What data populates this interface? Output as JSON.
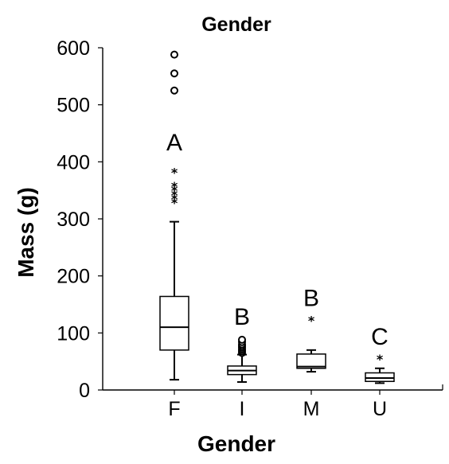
{
  "chart_data": {
    "type": "boxplot",
    "title": "Gender",
    "xlabel": "Gender",
    "ylabel": "Mass (g)",
    "ylim": [
      0,
      600
    ],
    "yticks": [
      0,
      100,
      200,
      300,
      400,
      500,
      600
    ],
    "categories": [
      "F",
      "I",
      "M",
      "U"
    ],
    "grid": false,
    "groups": [
      {
        "category": "F",
        "min": 18,
        "q1": 70,
        "median": 110,
        "q3": 164,
        "max": 295,
        "letter": "A",
        "outliers": [
          {
            "value": 327,
            "shape": "star"
          },
          {
            "value": 334,
            "shape": "star"
          },
          {
            "value": 341,
            "shape": "star"
          },
          {
            "value": 349,
            "shape": "star"
          },
          {
            "value": 356,
            "shape": "star"
          },
          {
            "value": 380,
            "shape": "star"
          },
          {
            "value": 525,
            "shape": "circle"
          },
          {
            "value": 555,
            "shape": "circle"
          },
          {
            "value": 588,
            "shape": "circle"
          }
        ]
      },
      {
        "category": "I",
        "min": 14,
        "q1": 27,
        "median": 34,
        "q3": 42,
        "max": 62,
        "letter": "B",
        "outliers": [
          {
            "value": 65,
            "shape": "circle"
          },
          {
            "value": 68,
            "shape": "circle"
          },
          {
            "value": 71,
            "shape": "circle"
          },
          {
            "value": 74,
            "shape": "circle"
          },
          {
            "value": 77,
            "shape": "circle"
          },
          {
            "value": 80,
            "shape": "circle"
          },
          {
            "value": 84,
            "shape": "circle"
          },
          {
            "value": 88,
            "shape": "circle"
          }
        ]
      },
      {
        "category": "M",
        "min": 32,
        "q1": 38,
        "median": 41,
        "q3": 63,
        "max": 70,
        "letter": "B",
        "outliers": [
          {
            "value": 121,
            "shape": "star"
          }
        ]
      },
      {
        "category": "U",
        "min": 12,
        "q1": 15,
        "median": 21,
        "q3": 30,
        "max": 38,
        "letter": "C",
        "outliers": [
          {
            "value": 53,
            "shape": "star"
          }
        ]
      }
    ]
  }
}
